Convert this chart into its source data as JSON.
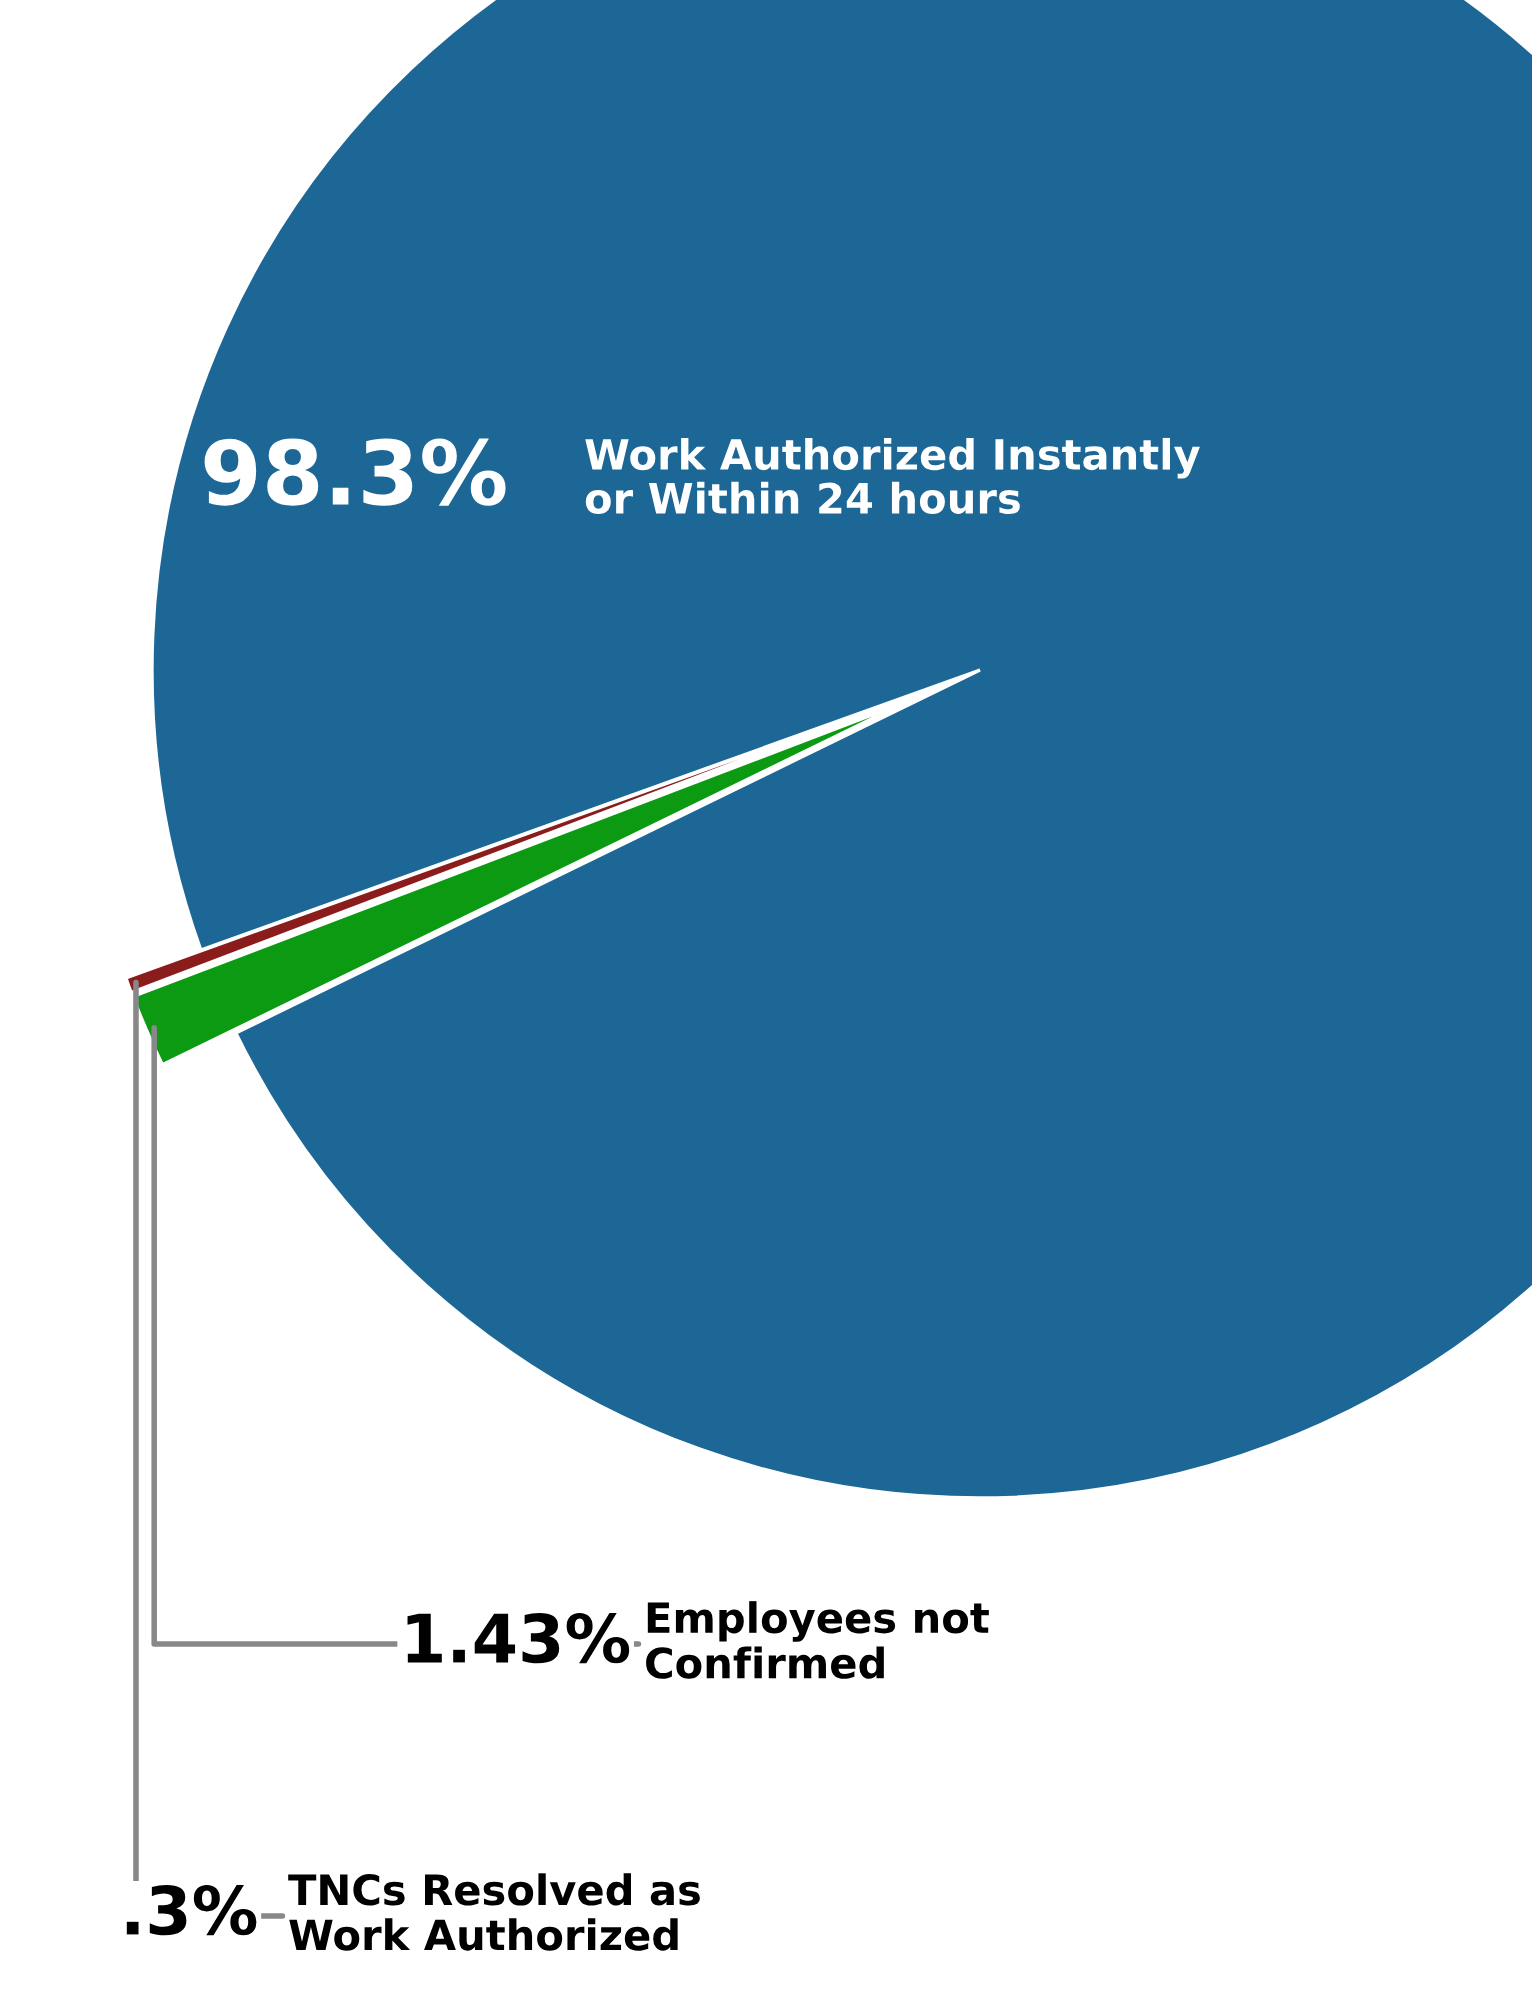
{
  "chart_data": {
    "type": "pie",
    "categories": [
      "Work Authorized Instantly\nor Within 24 hours",
      "Employees not\nConfirmed",
      "TNCs Resolved as\nWork Authorized"
    ],
    "values": [
      98.3,
      1.43,
      0.3
    ],
    "colors": [
      "#1d6796",
      "#0c9a12",
      "#8a1c1c"
    ],
    "value_labels": [
      "98.3%",
      "1.43%",
      ".3%"
    ]
  }
}
